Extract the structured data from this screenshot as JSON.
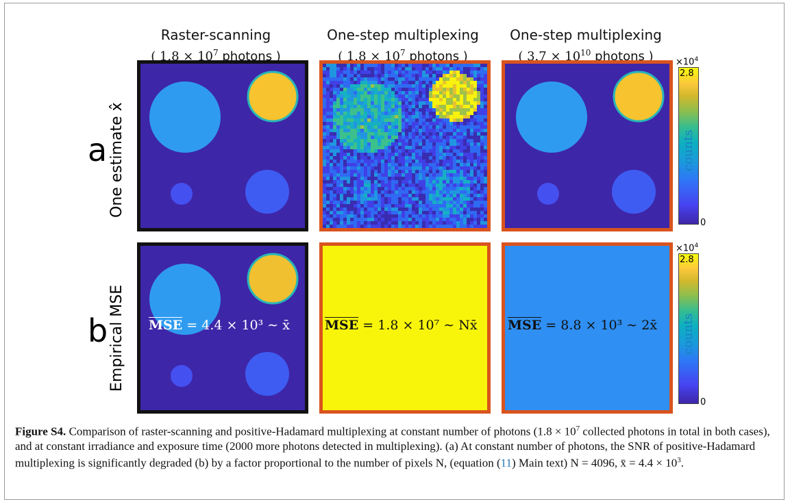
{
  "columns": [
    {
      "title": "Raster-scanning",
      "subtitle_prefix": "( 1.8 × 10",
      "subtitle_exp": "7",
      "subtitle_suffix": " photons )"
    },
    {
      "title": "One-step multiplexing",
      "subtitle_prefix": "( 1.8 × 10",
      "subtitle_exp": "7",
      "subtitle_suffix": " photons )"
    },
    {
      "title": "One-step multiplexing",
      "subtitle_prefix": "( 3.7 × 10",
      "subtitle_exp": "10",
      "subtitle_suffix": " photons )"
    }
  ],
  "rows": [
    {
      "letter": "a",
      "label": "One estimate x̂"
    },
    {
      "letter": "b",
      "label": "Empirical MSE"
    }
  ],
  "colorbar": {
    "exponent_base": "×10",
    "exponent_power": "4",
    "max_tick": "2.8",
    "min_tick": "0",
    "label": "counts"
  },
  "mse_labels": [
    {
      "sym": "MSE",
      "text": " = 4.4 × 10³ ∼ x̄"
    },
    {
      "sym": "MSE",
      "text": " = 1.8 × 10⁷ ∼ Nx̄"
    },
    {
      "sym": "MSE",
      "text": " = 8.8 × 10³ ∼ 2x̄"
    }
  ],
  "colors": {
    "background": "#3e26a8",
    "large_circle": "#2f9bf0",
    "bright_circle": "#f7c32e",
    "small_circles": "#3e5cf2",
    "raster_border": "#111111",
    "multiplex_border": "#d9541e",
    "mse_uniform_yellow": "#f8f50a",
    "mse_uniform_blue": "#2f8ff2"
  },
  "caption": {
    "label": "Figure S4.",
    "text1": " Comparison of raster-scanning and positive-Hadamard multiplexing at constant number of photons (1.8 × 10",
    "exp1": "7",
    "text2": " collected photons in total in both cases), and at constant irradiance and exposure time (2000 more photons detected in multiplexing). (a) At constant number of photons, the SNR of positive-Hadamard multiplexing is significantly degraded (b) by a factor proportional to the number of pixels N, (equation (",
    "ref": "11",
    "text3": ") Main text) N = 4096, x̄ = 4.4 × 10",
    "exp3": "3",
    "text4": "."
  }
}
